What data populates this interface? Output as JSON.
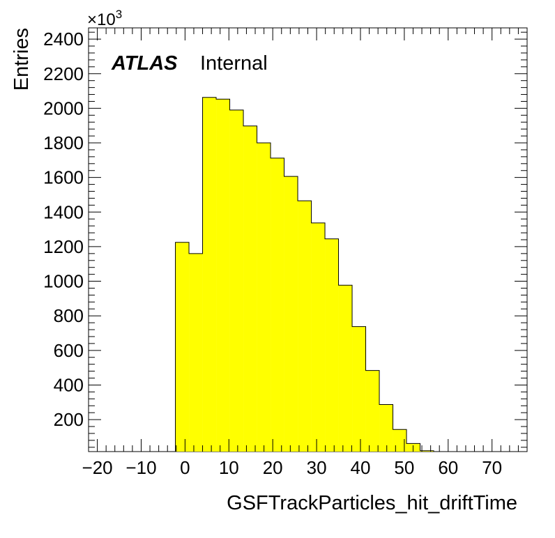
{
  "chart_data": {
    "type": "bar",
    "style": "histogram",
    "xlabel": "GSFTrackParticles_hit_driftTime",
    "ylabel": "Entries",
    "y_multiplier_label": "×10",
    "y_multiplier_exponent": "3",
    "atlas_label": "ATLAS",
    "atlas_status": "Internal",
    "xlim": [
      -22,
      78
    ],
    "ylim": [
      15,
      2465
    ],
    "x_ticks": [
      -20,
      -10,
      0,
      10,
      20,
      30,
      40,
      50,
      60,
      70
    ],
    "x_tick_labels": [
      "−20",
      "−10",
      "0",
      "10",
      "20",
      "30",
      "40",
      "50",
      "60",
      "70"
    ],
    "y_ticks": [
      200,
      400,
      600,
      800,
      1000,
      1200,
      1400,
      1600,
      1800,
      2000,
      2200,
      2400
    ],
    "y_tick_labels": [
      "200",
      "400",
      "600",
      "800",
      "1000",
      "1200",
      "1400",
      "1600",
      "1800",
      "2000",
      "2200",
      "2400"
    ],
    "bin_width": 3.1,
    "bin_edges_start": -2.2,
    "values": [
      1225,
      1160,
      2063,
      2053,
      1990,
      1898,
      1800,
      1712,
      1606,
      1465,
      1337,
      1245,
      977,
      738,
      484,
      287,
      143,
      62,
      20
    ],
    "fill_color": "#ffff00",
    "line_color": "#000000",
    "grid": false
  }
}
